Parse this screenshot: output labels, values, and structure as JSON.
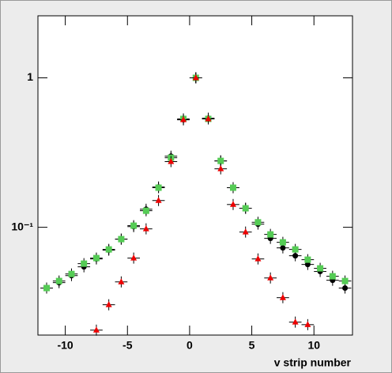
{
  "chart_data": {
    "type": "scatter",
    "x_label": "v strip number",
    "log_y": true,
    "x": [
      -11.5,
      -10.5,
      -9.5,
      -8.5,
      -7.5,
      -6.5,
      -5.5,
      -4.5,
      -3.5,
      -2.5,
      -1.5,
      -0.5,
      0.5,
      1.5,
      2.5,
      3.5,
      4.5,
      5.5,
      6.5,
      7.5,
      8.5,
      9.5,
      10.5,
      11.5,
      12.5
    ],
    "series": [
      {
        "marker": "circle",
        "color": "#000000",
        "values": [
          0.0392,
          0.0426,
          0.0475,
          0.0544,
          0.0614,
          0.0703,
          0.0833,
          0.101,
          0.132,
          0.186,
          0.299,
          0.524,
          1.0,
          0.537,
          0.278,
          0.184,
          0.134,
          0.105,
          0.0843,
          0.0728,
          0.0645,
          0.0564,
          0.0506,
          0.0442,
          0.0392
        ]
      },
      {
        "marker": "square",
        "color": "#55cc55",
        "values": [
          0.0392,
          0.0437,
          0.0487,
          0.0571,
          0.0622,
          0.0711,
          0.0833,
          0.1025,
          0.129,
          0.184,
          0.292,
          0.531,
          1.0,
          0.531,
          0.278,
          0.184,
          0.134,
          0.108,
          0.0896,
          0.0793,
          0.0711,
          0.0607,
          0.0531,
          0.047,
          0.0437
        ]
      },
      {
        "marker": "triangle",
        "color": "#ee0000",
        "values": [
          null,
          null,
          null,
          null,
          0.0205,
          0.0303,
          0.0431,
          0.0622,
          0.0976,
          0.151,
          0.275,
          0.524,
          1.0,
          0.531,
          0.246,
          0.142,
          0.0929,
          0.0614,
          0.0458,
          0.0338,
          0.0232,
          0.0223,
          null,
          null,
          null
        ]
      }
    ],
    "xlim": [
      -12.2,
      13.1
    ],
    "xticks": [
      -10,
      -5,
      0,
      5,
      10
    ],
    "ylim": [
      0.019,
      2.6
    ],
    "yticks": [
      {
        "value": 0.1,
        "label": "10⁻¹"
      },
      1
    ]
  }
}
